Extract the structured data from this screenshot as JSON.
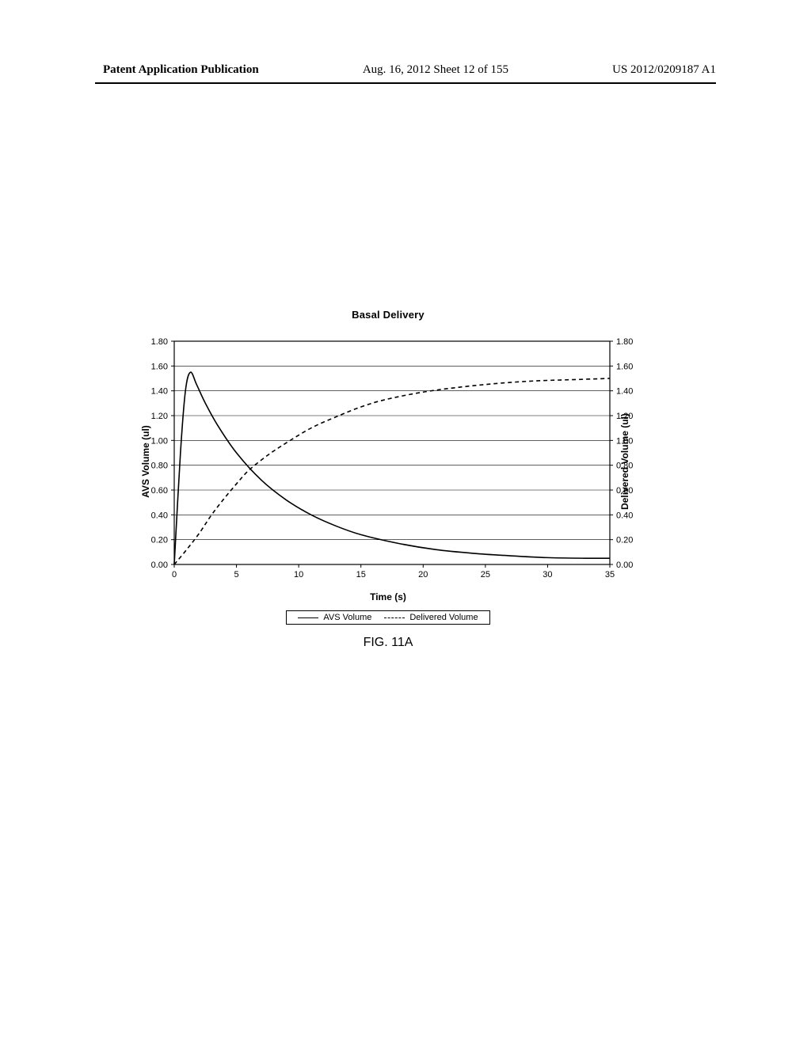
{
  "header": {
    "left": "Patent Application Publication",
    "center": "Aug. 16, 2012  Sheet 12 of 155",
    "right": "US 2012/0209187 A1"
  },
  "chart": {
    "title": "Basal Delivery",
    "type": "line",
    "x_label": "Time (s)",
    "y_label_left": "AVS Volume (ul)",
    "y_label_right": "Delivered Volume (ul)",
    "xlim": [
      0,
      35
    ],
    "ylim": [
      0.0,
      1.8
    ],
    "xtick_step": 5,
    "ytick_step": 0.2,
    "xticks": [
      0,
      5,
      10,
      15,
      20,
      25,
      30,
      35
    ],
    "yticks_left": [
      "0.00",
      "0.20",
      "0.40",
      "0.60",
      "0.80",
      "1.00",
      "1.20",
      "1.40",
      "1.60",
      "1.80"
    ],
    "yticks_right": [
      "0.00",
      "0.20",
      "0.40",
      "0.60",
      "0.80",
      "1.00",
      "1.20",
      "1.40",
      "1.60",
      "1.80"
    ],
    "background_color": "#ffffff",
    "axis_color": "#000000",
    "grid_color": "#000000",
    "grid_width": 0.6,
    "line_width": 1.6,
    "series": [
      {
        "name": "AVS Volume",
        "color": "#000000",
        "dash": "none",
        "points": [
          [
            0.0,
            0.0
          ],
          [
            0.5,
            0.9
          ],
          [
            0.9,
            1.4
          ],
          [
            1.3,
            1.55
          ],
          [
            1.8,
            1.45
          ],
          [
            2.5,
            1.3
          ],
          [
            3.5,
            1.12
          ],
          [
            5.0,
            0.9
          ],
          [
            7.0,
            0.68
          ],
          [
            9.0,
            0.52
          ],
          [
            11.0,
            0.4
          ],
          [
            13.0,
            0.31
          ],
          [
            15.0,
            0.24
          ],
          [
            18.0,
            0.17
          ],
          [
            21.0,
            0.12
          ],
          [
            24.0,
            0.09
          ],
          [
            27.0,
            0.07
          ],
          [
            30.0,
            0.055
          ],
          [
            33.0,
            0.05
          ],
          [
            35.0,
            0.05
          ]
        ]
      },
      {
        "name": "Delivered Volume",
        "color": "#000000",
        "dash": "5,4",
        "points": [
          [
            0.0,
            0.0
          ],
          [
            1.0,
            0.12
          ],
          [
            2.0,
            0.25
          ],
          [
            3.0,
            0.4
          ],
          [
            4.0,
            0.53
          ],
          [
            5.0,
            0.65
          ],
          [
            6.0,
            0.76
          ],
          [
            7.5,
            0.88
          ],
          [
            9.0,
            0.98
          ],
          [
            11.0,
            1.1
          ],
          [
            13.0,
            1.19
          ],
          [
            15.0,
            1.27
          ],
          [
            17.0,
            1.33
          ],
          [
            20.0,
            1.39
          ],
          [
            23.0,
            1.43
          ],
          [
            26.0,
            1.46
          ],
          [
            29.0,
            1.48
          ],
          [
            32.0,
            1.49
          ],
          [
            35.0,
            1.5
          ]
        ]
      }
    ],
    "legend": {
      "items": [
        {
          "label": "AVS Volume",
          "dash": "none"
        },
        {
          "label": "Delivered Volume",
          "dash": "5,4"
        }
      ]
    }
  },
  "figure_caption": "FIG. 11A"
}
